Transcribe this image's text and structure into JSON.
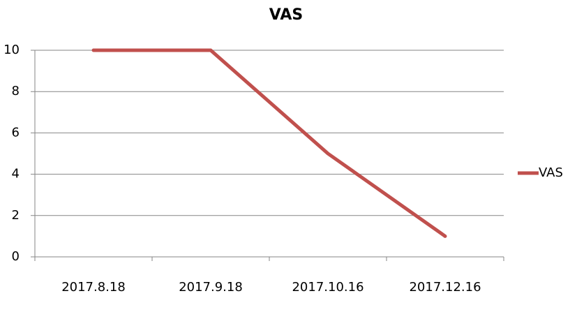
{
  "chart_data": {
    "type": "line",
    "title": "VAS",
    "categories": [
      "2017.8.18",
      "2017.9.18",
      "2017.10.16",
      "2017.12.16"
    ],
    "series": [
      {
        "name": "VAS",
        "color": "#c0504d",
        "values": [
          10,
          10,
          5,
          1
        ]
      }
    ],
    "ylim": [
      0,
      10
    ],
    "yticks": [
      0,
      2,
      4,
      6,
      8,
      10
    ],
    "grid": true,
    "legend": "right"
  }
}
